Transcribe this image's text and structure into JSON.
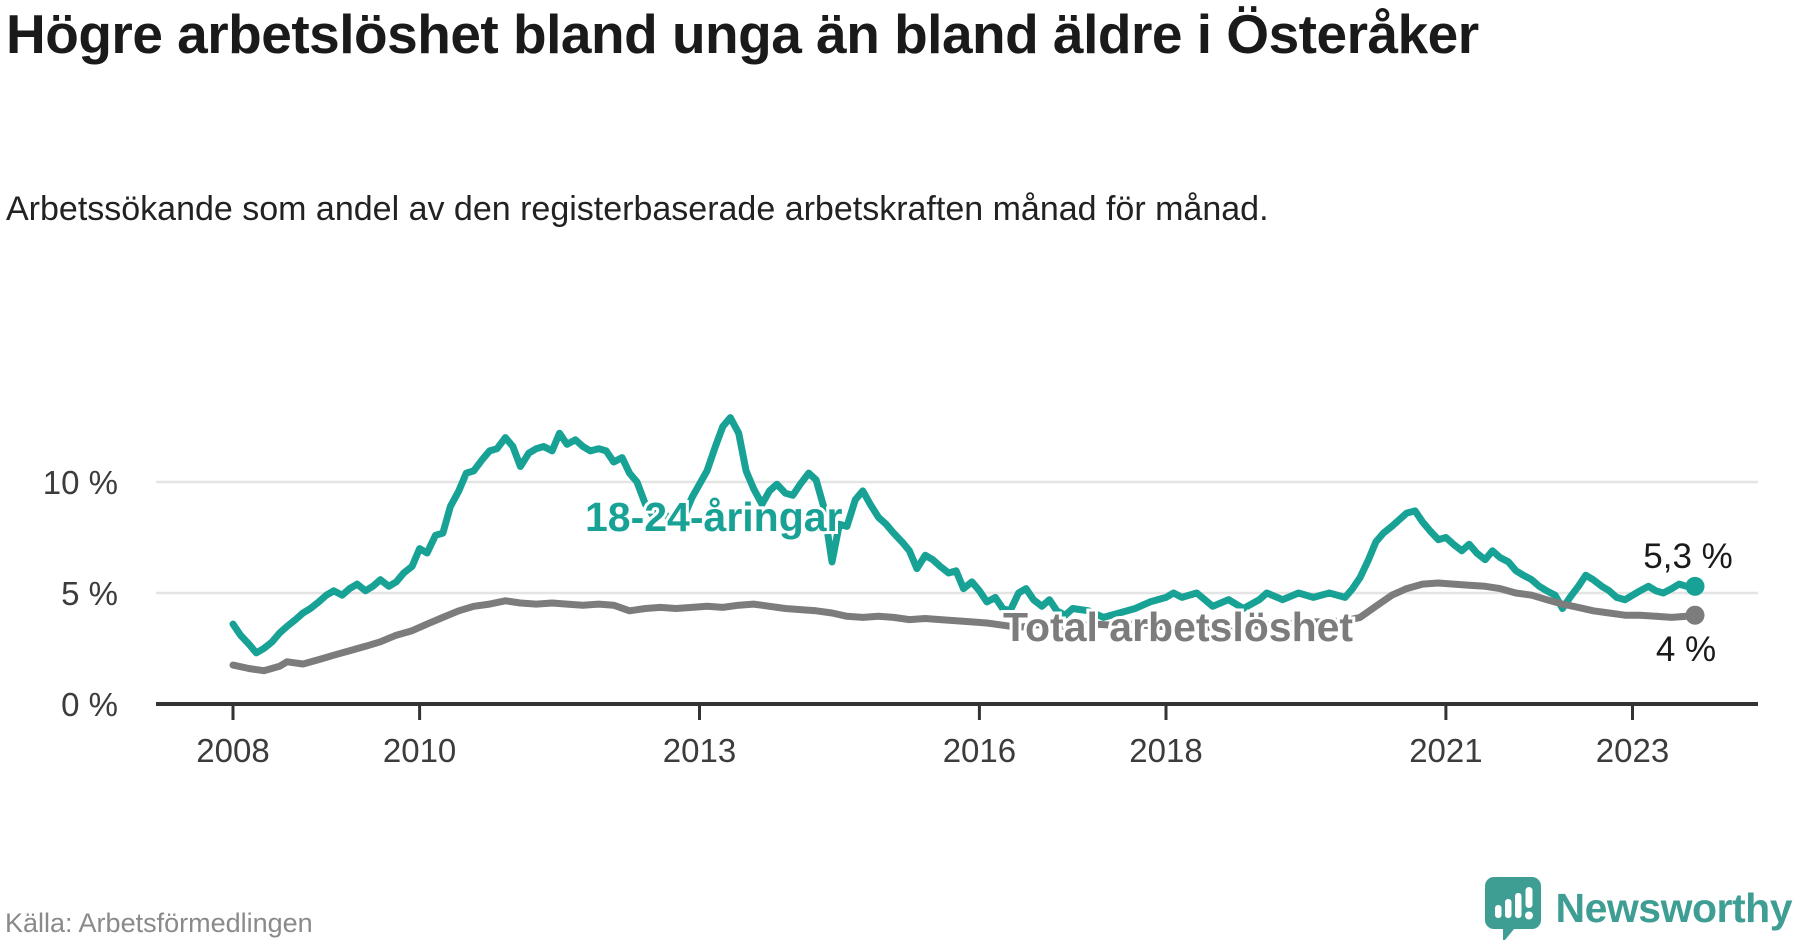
{
  "header": {
    "title": "Högre arbetslöshet bland unga än bland äldre i Österåker",
    "subtitle": "Arbetssökande som andel av den registerbaserade arbetskraften månad för månad."
  },
  "footer": {
    "source": "Källa: Arbetsförmedlingen",
    "brand": "Newsworthy",
    "brand_color": "#3f9e93"
  },
  "chart_data": {
    "type": "line",
    "title": "Högre arbetslöshet bland unga än bland äldre i Österåker",
    "xlabel": "",
    "ylabel": "",
    "grid": "horizontal",
    "axis_color": "#333333",
    "grid_color": "#e4e4e4",
    "tick_label_color": "#3c3c3c",
    "value_label_color": "#1a1a1a",
    "x_ticks": [
      {
        "v": 2008,
        "label": "2008"
      },
      {
        "v": 2010,
        "label": "2010"
      },
      {
        "v": 2013,
        "label": "2013"
      },
      {
        "v": 2016,
        "label": "2016"
      },
      {
        "v": 2018,
        "label": "2018"
      },
      {
        "v": 2021,
        "label": "2021"
      },
      {
        "v": 2023,
        "label": "2023"
      }
    ],
    "y_ticks": [
      {
        "v": 0,
        "label": "0 %"
      },
      {
        "v": 5,
        "label": "5 %"
      },
      {
        "v": 10,
        "label": "10 %"
      }
    ],
    "y_gridlines": [
      5,
      10
    ],
    "x_range": [
      2007.75,
      2024.35
    ],
    "y_range": [
      0,
      14
    ],
    "series": [
      {
        "name": "18-24-åringar",
        "color": "#18a295",
        "end_label": "5,3 %",
        "end_value": 5.3,
        "points": [
          [
            2008.0,
            3.6
          ],
          [
            2008.08,
            3.1
          ],
          [
            2008.17,
            2.7
          ],
          [
            2008.25,
            2.3
          ],
          [
            2008.33,
            2.5
          ],
          [
            2008.42,
            2.8
          ],
          [
            2008.5,
            3.2
          ],
          [
            2008.58,
            3.5
          ],
          [
            2008.67,
            3.8
          ],
          [
            2008.75,
            4.1
          ],
          [
            2008.83,
            4.3
          ],
          [
            2008.92,
            4.6
          ],
          [
            2009.0,
            4.9
          ],
          [
            2009.08,
            5.1
          ],
          [
            2009.17,
            4.9
          ],
          [
            2009.25,
            5.2
          ],
          [
            2009.33,
            5.4
          ],
          [
            2009.42,
            5.1
          ],
          [
            2009.5,
            5.3
          ],
          [
            2009.58,
            5.6
          ],
          [
            2009.67,
            5.3
          ],
          [
            2009.75,
            5.5
          ],
          [
            2009.83,
            5.9
          ],
          [
            2009.92,
            6.2
          ],
          [
            2010.0,
            7.0
          ],
          [
            2010.08,
            6.8
          ],
          [
            2010.17,
            7.6
          ],
          [
            2010.25,
            7.7
          ],
          [
            2010.33,
            8.9
          ],
          [
            2010.42,
            9.6
          ],
          [
            2010.5,
            10.4
          ],
          [
            2010.58,
            10.5
          ],
          [
            2010.67,
            11.0
          ],
          [
            2010.75,
            11.4
          ],
          [
            2010.83,
            11.5
          ],
          [
            2010.92,
            12.0
          ],
          [
            2011.0,
            11.6
          ],
          [
            2011.08,
            10.7
          ],
          [
            2011.17,
            11.3
          ],
          [
            2011.25,
            11.5
          ],
          [
            2011.33,
            11.6
          ],
          [
            2011.42,
            11.4
          ],
          [
            2011.5,
            12.2
          ],
          [
            2011.58,
            11.7
          ],
          [
            2011.67,
            11.9
          ],
          [
            2011.75,
            11.6
          ],
          [
            2011.83,
            11.4
          ],
          [
            2011.92,
            11.5
          ],
          [
            2012.0,
            11.4
          ],
          [
            2012.08,
            10.9
          ],
          [
            2012.17,
            11.1
          ],
          [
            2012.25,
            10.4
          ],
          [
            2012.33,
            10.0
          ],
          [
            2012.42,
            9.0
          ],
          [
            2012.5,
            8.5
          ],
          [
            2012.58,
            8.7
          ],
          [
            2012.67,
            8.4
          ],
          [
            2012.75,
            8.2
          ],
          [
            2012.83,
            8.4
          ],
          [
            2012.92,
            9.3
          ],
          [
            2013.0,
            9.9
          ],
          [
            2013.08,
            10.5
          ],
          [
            2013.17,
            11.6
          ],
          [
            2013.25,
            12.5
          ],
          [
            2013.33,
            12.9
          ],
          [
            2013.42,
            12.2
          ],
          [
            2013.5,
            10.5
          ],
          [
            2013.58,
            9.7
          ],
          [
            2013.67,
            9.0
          ],
          [
            2013.75,
            9.6
          ],
          [
            2013.83,
            9.9
          ],
          [
            2013.92,
            9.5
          ],
          [
            2014.0,
            9.4
          ],
          [
            2014.08,
            9.9
          ],
          [
            2014.17,
            10.4
          ],
          [
            2014.25,
            10.1
          ],
          [
            2014.33,
            8.9
          ],
          [
            2014.42,
            6.4
          ],
          [
            2014.5,
            8.1
          ],
          [
            2014.58,
            8.0
          ],
          [
            2014.67,
            9.2
          ],
          [
            2014.75,
            9.6
          ],
          [
            2014.83,
            9.0
          ],
          [
            2014.92,
            8.4
          ],
          [
            2015.0,
            8.1
          ],
          [
            2015.08,
            7.7
          ],
          [
            2015.17,
            7.3
          ],
          [
            2015.25,
            6.9
          ],
          [
            2015.33,
            6.1
          ],
          [
            2015.42,
            6.7
          ],
          [
            2015.5,
            6.5
          ],
          [
            2015.58,
            6.2
          ],
          [
            2015.67,
            5.9
          ],
          [
            2015.75,
            6.0
          ],
          [
            2015.83,
            5.2
          ],
          [
            2015.92,
            5.5
          ],
          [
            2016.0,
            5.1
          ],
          [
            2016.08,
            4.6
          ],
          [
            2016.17,
            4.8
          ],
          [
            2016.25,
            4.3
          ],
          [
            2016.33,
            4.2
          ],
          [
            2016.42,
            5.0
          ],
          [
            2016.5,
            5.2
          ],
          [
            2016.58,
            4.7
          ],
          [
            2016.67,
            4.4
          ],
          [
            2016.75,
            4.7
          ],
          [
            2016.83,
            4.2
          ],
          [
            2016.92,
            4.0
          ],
          [
            2017.0,
            4.3
          ],
          [
            2017.17,
            4.2
          ],
          [
            2017.33,
            3.9
          ],
          [
            2017.5,
            4.1
          ],
          [
            2017.67,
            4.3
          ],
          [
            2017.83,
            4.6
          ],
          [
            2018.0,
            4.8
          ],
          [
            2018.08,
            5.0
          ],
          [
            2018.17,
            4.8
          ],
          [
            2018.33,
            5.0
          ],
          [
            2018.5,
            4.4
          ],
          [
            2018.67,
            4.7
          ],
          [
            2018.83,
            4.3
          ],
          [
            2019.0,
            4.7
          ],
          [
            2019.08,
            5.0
          ],
          [
            2019.25,
            4.7
          ],
          [
            2019.42,
            5.0
          ],
          [
            2019.58,
            4.8
          ],
          [
            2019.75,
            5.0
          ],
          [
            2019.92,
            4.8
          ],
          [
            2020.0,
            5.2
          ],
          [
            2020.08,
            5.7
          ],
          [
            2020.17,
            6.5
          ],
          [
            2020.25,
            7.3
          ],
          [
            2020.33,
            7.7
          ],
          [
            2020.42,
            8.0
          ],
          [
            2020.5,
            8.3
          ],
          [
            2020.58,
            8.6
          ],
          [
            2020.67,
            8.7
          ],
          [
            2020.75,
            8.2
          ],
          [
            2020.83,
            7.8
          ],
          [
            2020.92,
            7.4
          ],
          [
            2021.0,
            7.5
          ],
          [
            2021.08,
            7.2
          ],
          [
            2021.17,
            6.9
          ],
          [
            2021.25,
            7.2
          ],
          [
            2021.33,
            6.8
          ],
          [
            2021.42,
            6.5
          ],
          [
            2021.5,
            6.9
          ],
          [
            2021.58,
            6.6
          ],
          [
            2021.67,
            6.4
          ],
          [
            2021.75,
            6.0
          ],
          [
            2021.83,
            5.8
          ],
          [
            2021.92,
            5.6
          ],
          [
            2022.0,
            5.3
          ],
          [
            2022.08,
            5.1
          ],
          [
            2022.17,
            4.9
          ],
          [
            2022.25,
            4.3
          ],
          [
            2022.33,
            4.8
          ],
          [
            2022.42,
            5.3
          ],
          [
            2022.5,
            5.8
          ],
          [
            2022.58,
            5.6
          ],
          [
            2022.67,
            5.3
          ],
          [
            2022.75,
            5.1
          ],
          [
            2022.83,
            4.8
          ],
          [
            2022.92,
            4.7
          ],
          [
            2023.0,
            4.9
          ],
          [
            2023.08,
            5.1
          ],
          [
            2023.17,
            5.3
          ],
          [
            2023.25,
            5.1
          ],
          [
            2023.33,
            5.0
          ],
          [
            2023.42,
            5.2
          ],
          [
            2023.5,
            5.4
          ],
          [
            2023.58,
            5.3
          ],
          [
            2023.67,
            5.3
          ]
        ]
      },
      {
        "name": "Total arbetslöshet",
        "color": "#7c7c7c",
        "end_label": "4 %",
        "end_value": 4.0,
        "points": [
          [
            2008.0,
            1.75
          ],
          [
            2008.17,
            1.6
          ],
          [
            2008.33,
            1.5
          ],
          [
            2008.5,
            1.7
          ],
          [
            2008.58,
            1.9
          ],
          [
            2008.75,
            1.8
          ],
          [
            2008.92,
            2.0
          ],
          [
            2009.08,
            2.2
          ],
          [
            2009.25,
            2.4
          ],
          [
            2009.42,
            2.6
          ],
          [
            2009.58,
            2.8
          ],
          [
            2009.75,
            3.1
          ],
          [
            2009.92,
            3.3
          ],
          [
            2010.08,
            3.6
          ],
          [
            2010.25,
            3.9
          ],
          [
            2010.42,
            4.2
          ],
          [
            2010.58,
            4.4
          ],
          [
            2010.75,
            4.5
          ],
          [
            2010.92,
            4.65
          ],
          [
            2011.08,
            4.55
          ],
          [
            2011.25,
            4.5
          ],
          [
            2011.42,
            4.55
          ],
          [
            2011.58,
            4.5
          ],
          [
            2011.75,
            4.45
          ],
          [
            2011.92,
            4.5
          ],
          [
            2012.08,
            4.45
          ],
          [
            2012.25,
            4.2
          ],
          [
            2012.42,
            4.3
          ],
          [
            2012.58,
            4.35
          ],
          [
            2012.75,
            4.3
          ],
          [
            2012.92,
            4.35
          ],
          [
            2013.08,
            4.4
          ],
          [
            2013.25,
            4.35
          ],
          [
            2013.42,
            4.45
          ],
          [
            2013.58,
            4.5
          ],
          [
            2013.75,
            4.4
          ],
          [
            2013.92,
            4.3
          ],
          [
            2014.08,
            4.25
          ],
          [
            2014.25,
            4.2
          ],
          [
            2014.42,
            4.1
          ],
          [
            2014.58,
            3.95
          ],
          [
            2014.75,
            3.9
          ],
          [
            2014.92,
            3.95
          ],
          [
            2015.08,
            3.9
          ],
          [
            2015.25,
            3.8
          ],
          [
            2015.42,
            3.85
          ],
          [
            2015.58,
            3.8
          ],
          [
            2015.75,
            3.75
          ],
          [
            2015.92,
            3.7
          ],
          [
            2016.08,
            3.65
          ],
          [
            2016.25,
            3.55
          ],
          [
            2016.42,
            3.45
          ],
          [
            2016.58,
            3.55
          ],
          [
            2016.75,
            3.6
          ],
          [
            2016.92,
            3.5
          ],
          [
            2017.08,
            3.55
          ],
          [
            2017.25,
            3.6
          ],
          [
            2017.42,
            3.55
          ],
          [
            2017.58,
            3.6
          ],
          [
            2017.75,
            3.55
          ],
          [
            2017.92,
            3.5
          ],
          [
            2018.08,
            3.45
          ],
          [
            2018.25,
            3.5
          ],
          [
            2018.42,
            3.45
          ],
          [
            2018.58,
            3.5
          ],
          [
            2018.75,
            3.45
          ],
          [
            2018.92,
            3.5
          ],
          [
            2019.08,
            3.55
          ],
          [
            2019.25,
            3.6
          ],
          [
            2019.42,
            3.65
          ],
          [
            2019.58,
            3.7
          ],
          [
            2019.75,
            3.7
          ],
          [
            2019.92,
            3.75
          ],
          [
            2020.08,
            3.9
          ],
          [
            2020.25,
            4.4
          ],
          [
            2020.42,
            4.9
          ],
          [
            2020.58,
            5.2
          ],
          [
            2020.75,
            5.4
          ],
          [
            2020.92,
            5.45
          ],
          [
            2021.08,
            5.4
          ],
          [
            2021.25,
            5.35
          ],
          [
            2021.42,
            5.3
          ],
          [
            2021.58,
            5.2
          ],
          [
            2021.75,
            5.0
          ],
          [
            2021.92,
            4.9
          ],
          [
            2022.08,
            4.7
          ],
          [
            2022.25,
            4.5
          ],
          [
            2022.42,
            4.35
          ],
          [
            2022.58,
            4.2
          ],
          [
            2022.75,
            4.1
          ],
          [
            2022.92,
            4.0
          ],
          [
            2023.08,
            4.0
          ],
          [
            2023.25,
            3.95
          ],
          [
            2023.42,
            3.9
          ],
          [
            2023.58,
            3.95
          ],
          [
            2023.67,
            4.0
          ]
        ]
      }
    ]
  }
}
